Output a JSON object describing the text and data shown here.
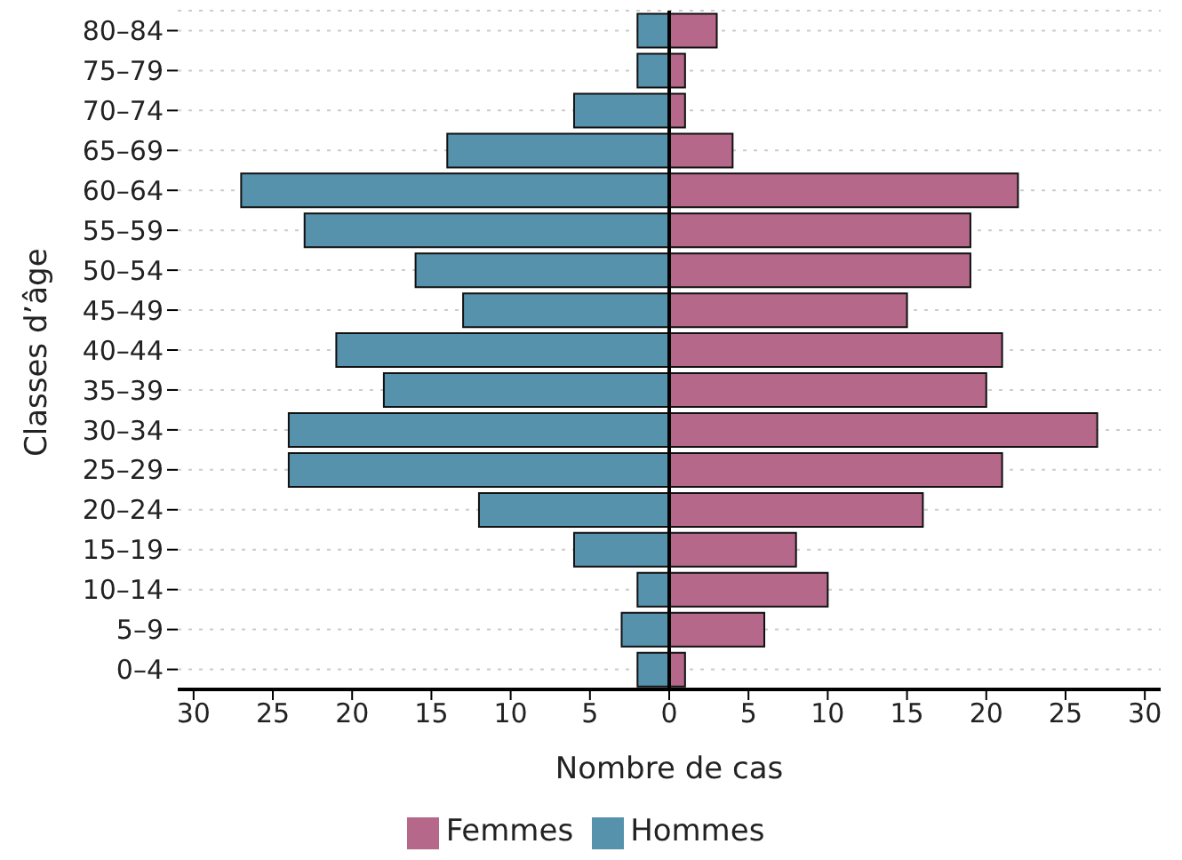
{
  "chart_data": {
    "type": "bar",
    "orientation": "horizontal",
    "stacked": true,
    "xlabel": "Nombre de cas",
    "ylabel": "Classes d’âge",
    "categories": [
      "80–84",
      "75–79",
      "70–74",
      "65–69",
      "60–64",
      "55–59",
      "50–54",
      "45–49",
      "40–44",
      "35–39",
      "30–34",
      "25–29",
      "20–24",
      "15–19",
      "10–14",
      "5–9",
      "0–4"
    ],
    "series": [
      {
        "name": "Hommes",
        "color": "#5792ad",
        "values": [
          -2,
          -2,
          -6,
          -14,
          -27,
          -23,
          -16,
          -13,
          -21,
          -18,
          -24,
          -24,
          -12,
          -6,
          -2,
          -3,
          -2
        ]
      },
      {
        "name": "Femmes",
        "color": "#b5688a",
        "values": [
          3,
          1,
          1,
          4,
          22,
          19,
          19,
          15,
          21,
          20,
          27,
          21,
          16,
          8,
          10,
          6,
          1
        ]
      }
    ],
    "xlim": [
      -31,
      31
    ],
    "xticks": [
      {
        "value": -30,
        "label": "30"
      },
      {
        "value": -25,
        "label": "25"
      },
      {
        "value": -20,
        "label": "20"
      },
      {
        "value": -15,
        "label": "15"
      },
      {
        "value": -10,
        "label": "10"
      },
      {
        "value": -5,
        "label": "5"
      },
      0,
      5,
      10,
      15,
      20,
      25,
      30
    ],
    "ref_lines": [
      {
        "axis": "x",
        "value": 0,
        "color": "#000000"
      }
    ],
    "grid": "y",
    "legend": "bottom"
  }
}
